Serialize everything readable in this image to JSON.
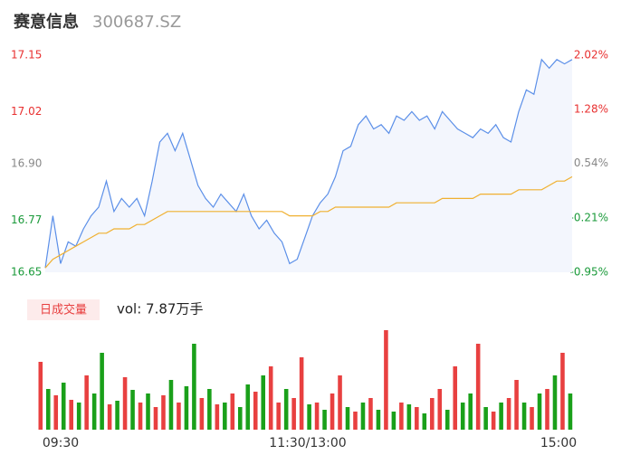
{
  "header": {
    "name": "赛意信息",
    "code": "300687.SZ"
  },
  "chart_data": [
    {
      "type": "line",
      "ylim": [
        16.65,
        17.15
      ],
      "yticks": [
        {
          "value": 17.15,
          "label": "17.15"
        },
        {
          "value": 17.02,
          "label": "17.02"
        },
        {
          "value": 16.9,
          "label": "16.90"
        },
        {
          "value": 16.77,
          "label": "16.77"
        },
        {
          "value": 16.65,
          "label": "16.65"
        }
      ],
      "ytick_colors": [
        "#e83030",
        "#e83030",
        "#888888",
        "#1a9a3a",
        "#1a9a3a"
      ],
      "y2lim": [
        -0.95,
        2.02
      ],
      "y2ticks": [
        {
          "value": 2.02,
          "label": "2.02%"
        },
        {
          "value": 1.28,
          "label": "1.28%"
        },
        {
          "value": 0.54,
          "label": "0.54%"
        },
        {
          "value": -0.21,
          "label": "-0.21%"
        },
        {
          "value": -0.95,
          "label": "-0.95%"
        }
      ],
      "series": [
        {
          "color": "#5b8fe8",
          "fill": "#f3f6fd",
          "values": [
            16.66,
            16.78,
            16.67,
            16.72,
            16.71,
            16.75,
            16.78,
            16.8,
            16.86,
            16.79,
            16.82,
            16.8,
            16.82,
            16.78,
            16.86,
            16.95,
            16.97,
            16.93,
            16.97,
            16.91,
            16.85,
            16.82,
            16.8,
            16.83,
            16.81,
            16.79,
            16.83,
            16.78,
            16.75,
            16.77,
            16.74,
            16.72,
            16.67,
            16.68,
            16.73,
            16.78,
            16.81,
            16.83,
            16.87,
            16.93,
            16.94,
            16.99,
            17.01,
            16.98,
            16.99,
            16.97,
            17.01,
            17.0,
            17.02,
            17.0,
            17.01,
            16.98,
            17.02,
            17.0,
            16.98,
            16.97,
            16.96,
            16.98,
            16.97,
            16.99,
            16.96,
            16.95,
            17.02,
            17.07,
            17.06,
            17.14,
            17.12,
            17.14,
            17.13,
            17.14
          ]
        },
        {
          "color": "#f0b030",
          "values": [
            16.66,
            16.68,
            16.69,
            16.7,
            16.71,
            16.72,
            16.73,
            16.74,
            16.74,
            16.75,
            16.75,
            16.75,
            16.76,
            16.76,
            16.77,
            16.78,
            16.79,
            16.79,
            16.79,
            16.79,
            16.79,
            16.79,
            16.79,
            16.79,
            16.79,
            16.79,
            16.79,
            16.79,
            16.79,
            16.79,
            16.79,
            16.79,
            16.78,
            16.78,
            16.78,
            16.78,
            16.79,
            16.79,
            16.8,
            16.8,
            16.8,
            16.8,
            16.8,
            16.8,
            16.8,
            16.8,
            16.81,
            16.81,
            16.81,
            16.81,
            16.81,
            16.81,
            16.82,
            16.82,
            16.82,
            16.82,
            16.82,
            16.83,
            16.83,
            16.83,
            16.83,
            16.83,
            16.84,
            16.84,
            16.84,
            16.84,
            16.85,
            16.86,
            16.86,
            16.87
          ]
        }
      ]
    },
    {
      "type": "bar",
      "label": "日成交量",
      "summary": "vol: 7.87万手",
      "xticks": [
        "09:30",
        "11:30/13:00",
        "15:00"
      ],
      "ylim": [
        0,
        110
      ],
      "values": [
        75,
        45,
        38,
        52,
        33,
        30,
        60,
        40,
        85,
        28,
        32,
        58,
        44,
        30,
        40,
        25,
        38,
        55,
        30,
        48,
        95,
        35,
        45,
        28,
        30,
        40,
        25,
        50,
        42,
        60,
        70,
        30,
        45,
        35,
        80,
        28,
        30,
        22,
        40,
        60,
        25,
        20,
        30,
        35,
        22,
        110,
        20,
        30,
        28,
        25,
        18,
        35,
        45,
        22,
        70,
        30,
        40,
        95,
        25,
        20,
        30,
        35,
        55,
        30,
        25,
        40,
        45,
        60,
        85,
        40
      ],
      "colors": [
        "#e84040",
        "#1aa01a",
        "#e84040",
        "#1aa01a",
        "#e84040",
        "#1aa01a",
        "#e84040",
        "#1aa01a",
        "#1aa01a",
        "#e84040",
        "#1aa01a",
        "#e84040",
        "#1aa01a",
        "#e84040",
        "#1aa01a",
        "#e84040",
        "#e84040",
        "#1aa01a",
        "#e84040",
        "#1aa01a",
        "#1aa01a",
        "#e84040",
        "#1aa01a",
        "#e84040",
        "#1aa01a",
        "#e84040",
        "#1aa01a",
        "#1aa01a",
        "#e84040",
        "#1aa01a",
        "#e84040",
        "#e84040",
        "#1aa01a",
        "#e84040",
        "#e84040",
        "#1aa01a",
        "#e84040",
        "#1aa01a",
        "#e84040",
        "#e84040",
        "#1aa01a",
        "#e84040",
        "#1aa01a",
        "#e84040",
        "#1aa01a",
        "#e84040",
        "#1aa01a",
        "#e84040",
        "#1aa01a",
        "#e84040",
        "#1aa01a",
        "#e84040",
        "#e84040",
        "#1aa01a",
        "#e84040",
        "#1aa01a",
        "#1aa01a",
        "#e84040",
        "#1aa01a",
        "#e84040",
        "#1aa01a",
        "#e84040",
        "#e84040",
        "#1aa01a",
        "#e84040",
        "#1aa01a",
        "#e84040",
        "#1aa01a",
        "#e84040",
        "#1aa01a"
      ]
    }
  ]
}
